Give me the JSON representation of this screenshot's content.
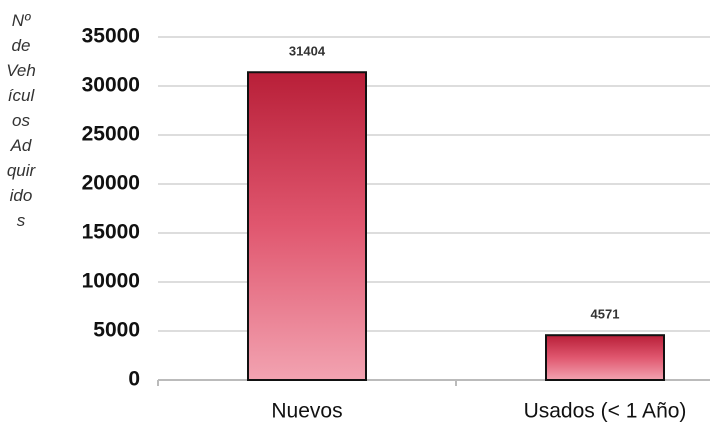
{
  "chart_data": {
    "type": "bar",
    "y_label": "Nº de Vehículos Adquiridos",
    "categories": [
      "Nuevos",
      "Usados (< 1 Año)"
    ],
    "values": [
      31404,
      4571
    ],
    "color": "#c0243f",
    "ylim": [
      0,
      35000
    ],
    "yticks": [
      0,
      5000,
      10000,
      15000,
      20000,
      25000,
      30000,
      35000
    ],
    "grid": true
  }
}
